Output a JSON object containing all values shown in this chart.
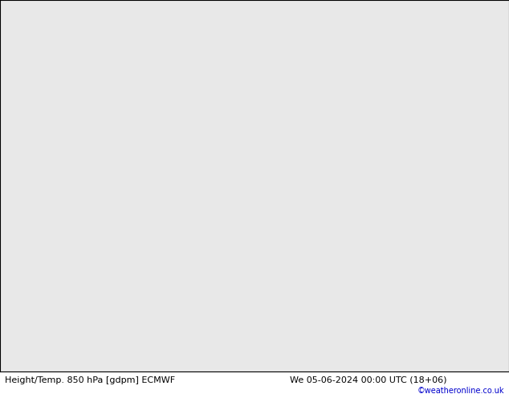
{
  "title_left": "Height/Temp. 850 hPa [gdpm] ECMWF",
  "title_right": "We 05-06-2024 00:00 UTC (18+06)",
  "copyright": "©weatheronline.co.uk",
  "land_color": "#c8e8a0",
  "sea_color": "#e8e8e8",
  "grid_color": "#aaaaaa",
  "grid_linewidth": 0.5,
  "orange_color": "#ff9900",
  "red_color": "#ff0000",
  "pink_color": "#ff44aa",
  "green_color": "#88cc00",
  "gray_color": "#999999",
  "black_color": "#000000",
  "label_fontsize": 6.5,
  "title_fontsize": 8.0,
  "copyright_fontsize": 7,
  "figsize": [
    6.34,
    4.9
  ],
  "dpi": 100,
  "bottom_bar_color": "#c8c8c8",
  "extent": [
    -100,
    40,
    -8,
    78
  ],
  "grid_lons": [
    -80,
    -60,
    -40,
    -20,
    0,
    20
  ],
  "grid_lats": [
    0,
    10,
    20,
    30,
    40,
    50,
    60,
    70
  ]
}
